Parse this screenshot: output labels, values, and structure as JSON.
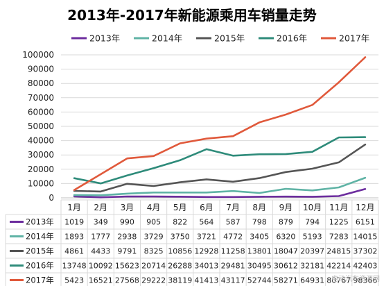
{
  "chart_data": {
    "type": "line",
    "title": "2013年-2017年新能源乘用车销量走势",
    "categories": [
      "1月",
      "2月",
      "3月",
      "4月",
      "5月",
      "6月",
      "7月",
      "8月",
      "9月",
      "10月",
      "11月",
      "12月"
    ],
    "ylim": [
      0,
      100000
    ],
    "yticks": [
      0,
      10000,
      20000,
      30000,
      40000,
      50000,
      60000,
      70000,
      80000,
      90000,
      100000
    ],
    "ytick_labels": [
      "0",
      "10000",
      "20000",
      "30000",
      "40000",
      "50000",
      "60000",
      "70000",
      "80000",
      "90000",
      "100000"
    ],
    "grid": true,
    "legend": "top",
    "series": [
      {
        "name": "2013年",
        "color": "#6c2d9e",
        "values": [
          1019,
          349,
          990,
          905,
          822,
          564,
          587,
          798,
          879,
          794,
          1225,
          6151
        ]
      },
      {
        "name": "2014年",
        "color": "#5fb3a5",
        "values": [
          1893,
          1777,
          2938,
          3729,
          3750,
          3721,
          4772,
          3405,
          6320,
          5193,
          7283,
          14015
        ]
      },
      {
        "name": "2015年",
        "color": "#555555",
        "values": [
          4861,
          4433,
          9791,
          8325,
          10856,
          12928,
          11258,
          13801,
          18047,
          20397,
          24815,
          37302
        ]
      },
      {
        "name": "2016年",
        "color": "#2e8b7a",
        "values": [
          13748,
          10092,
          15623,
          20714,
          26288,
          34013,
          29481,
          30495,
          30612,
          32181,
          42214,
          42403
        ]
      },
      {
        "name": "2017年",
        "color": "#e0593b",
        "values": [
          5423,
          16521,
          27568,
          29222,
          38119,
          41413,
          43117,
          52744,
          58271,
          64931,
          80767,
          98366
        ]
      }
    ]
  },
  "watermark": "电动汽车资源网"
}
